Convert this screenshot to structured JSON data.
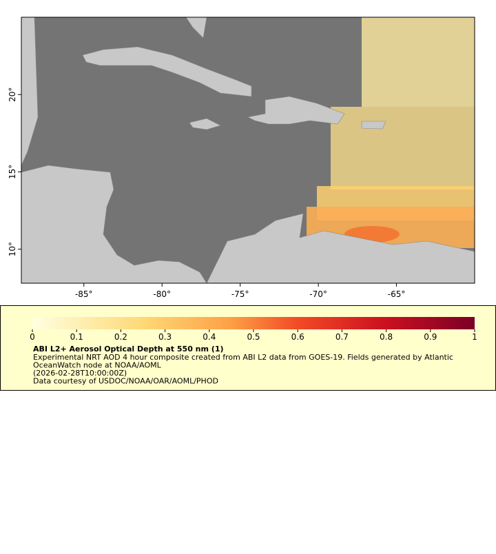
{
  "chart_data": {
    "type": "map",
    "xlim": [
      -89,
      -60
    ],
    "ylim": [
      7.8,
      25.0
    ],
    "xticks": [
      {
        "value": -85,
        "label": "-85°"
      },
      {
        "value": -80,
        "label": "-80°"
      },
      {
        "value": -75,
        "label": "-75°"
      },
      {
        "value": -70,
        "label": "-70°"
      },
      {
        "value": -65,
        "label": "-65°"
      }
    ],
    "yticks": [
      {
        "value": 10,
        "label": "10°"
      },
      {
        "value": 15,
        "label": "15°"
      },
      {
        "value": 20,
        "label": "20°"
      }
    ],
    "colorbar": {
      "lim": [
        0,
        1
      ],
      "ticks": [
        0,
        0.1,
        0.2,
        0.3,
        0.4,
        0.5,
        0.6,
        0.7,
        0.8,
        0.9,
        1
      ]
    },
    "legend": {
      "title": "ABI L2+ Aerosol Optical Depth at 550 nm (1)",
      "lines": [
        "Experimental NRT AOD 4 hour composite created from ABI L2 data from GOES-19. Fields generated by Atlantic",
        "OceanWatch node at NOAA/AOML",
        "(2026-02-28T10:00:00Z)",
        "Data courtesy of USDOC/NOAA/OAR/AOML/PHOD"
      ]
    }
  }
}
